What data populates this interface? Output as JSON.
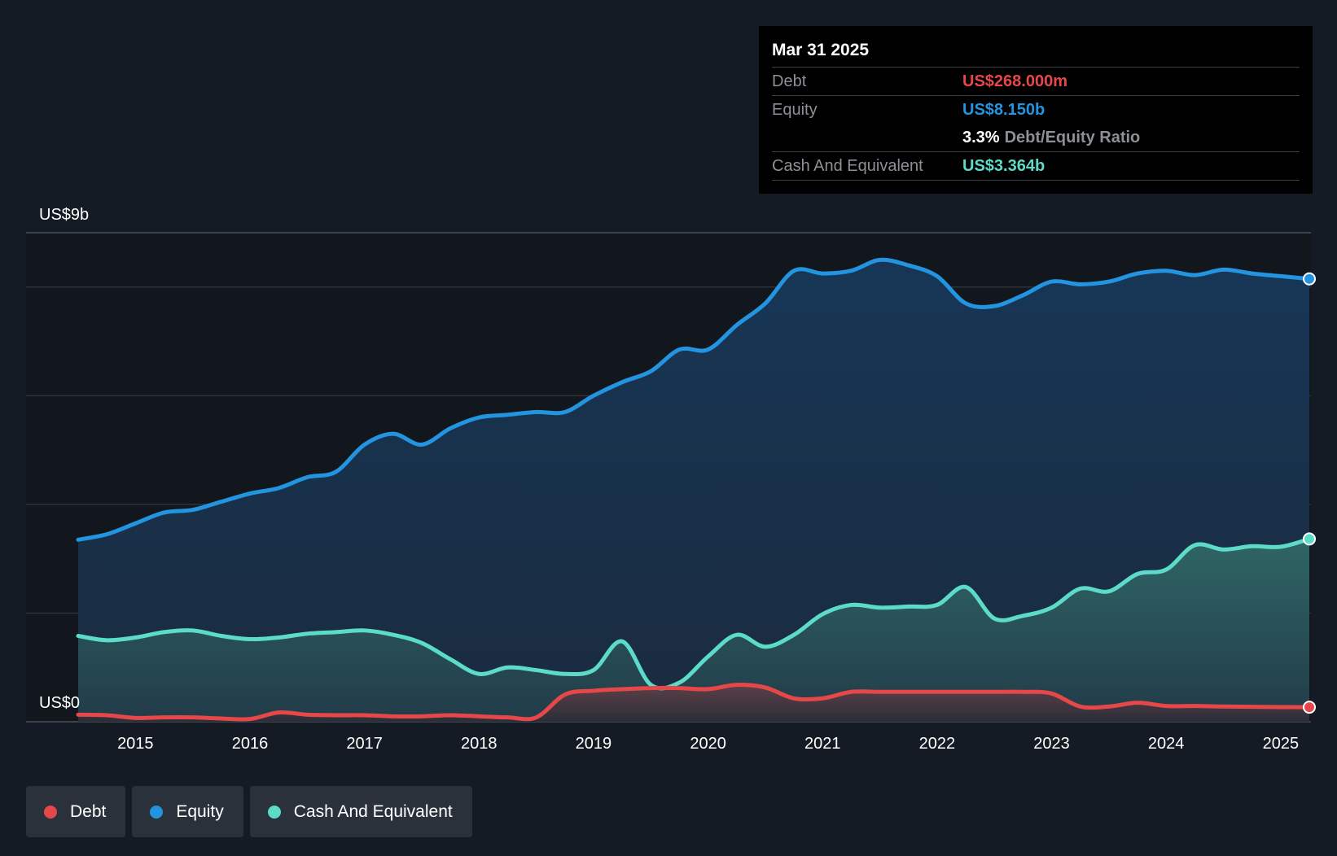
{
  "chart_data": {
    "type": "area",
    "title": "",
    "y_axis": {
      "top_label": "US$9b",
      "bottom_label": "US$0",
      "ylim": [
        0,
        9
      ],
      "unit": "US$ billions"
    },
    "x_axis": {
      "ticks": [
        "2015",
        "2016",
        "2017",
        "2018",
        "2019",
        "2020",
        "2021",
        "2022",
        "2023",
        "2024",
        "2025"
      ],
      "xlim": [
        2014.5,
        2025.25
      ]
    },
    "series": [
      {
        "name": "Equity",
        "color": "#2394df",
        "x": [
          2014.5,
          2014.75,
          2015.0,
          2015.25,
          2015.5,
          2015.75,
          2016.0,
          2016.25,
          2016.5,
          2016.75,
          2017.0,
          2017.25,
          2017.5,
          2017.75,
          2018.0,
          2018.25,
          2018.5,
          2018.75,
          2019.0,
          2019.25,
          2019.5,
          2019.75,
          2020.0,
          2020.25,
          2020.5,
          2020.75,
          2021.0,
          2021.25,
          2021.5,
          2021.75,
          2022.0,
          2022.25,
          2022.5,
          2022.75,
          2023.0,
          2023.25,
          2023.5,
          2023.75,
          2024.0,
          2024.25,
          2024.5,
          2024.75,
          2025.0,
          2025.25
        ],
        "values": [
          3.35,
          3.45,
          3.65,
          3.85,
          3.9,
          4.05,
          4.2,
          4.3,
          4.5,
          4.6,
          5.1,
          5.3,
          5.1,
          5.4,
          5.6,
          5.65,
          5.7,
          5.7,
          6.0,
          6.25,
          6.45,
          6.85,
          6.85,
          7.3,
          7.7,
          8.3,
          8.25,
          8.3,
          8.5,
          8.4,
          8.2,
          7.7,
          7.65,
          7.85,
          8.1,
          8.05,
          8.1,
          8.25,
          8.3,
          8.22,
          8.32,
          8.25,
          8.2,
          8.15
        ]
      },
      {
        "name": "Cash And Equivalent",
        "color": "#5cdbc9",
        "x": [
          2014.5,
          2014.75,
          2015.0,
          2015.25,
          2015.5,
          2015.75,
          2016.0,
          2016.25,
          2016.5,
          2016.75,
          2017.0,
          2017.25,
          2017.5,
          2017.75,
          2018.0,
          2018.25,
          2018.5,
          2018.75,
          2019.0,
          2019.25,
          2019.5,
          2019.75,
          2020.0,
          2020.25,
          2020.5,
          2020.75,
          2021.0,
          2021.25,
          2021.5,
          2021.75,
          2022.0,
          2022.25,
          2022.5,
          2022.75,
          2023.0,
          2023.25,
          2023.5,
          2023.75,
          2024.0,
          2024.25,
          2024.5,
          2024.75,
          2025.0,
          2025.25
        ],
        "values": [
          1.58,
          1.5,
          1.55,
          1.65,
          1.68,
          1.58,
          1.52,
          1.55,
          1.62,
          1.65,
          1.68,
          1.6,
          1.45,
          1.15,
          0.88,
          1.0,
          0.95,
          0.88,
          0.95,
          1.48,
          0.68,
          0.72,
          1.2,
          1.6,
          1.38,
          1.6,
          1.98,
          2.15,
          2.1,
          2.12,
          2.15,
          2.48,
          1.9,
          1.95,
          2.1,
          2.45,
          2.4,
          2.72,
          2.8,
          3.25,
          3.17,
          3.23,
          3.22,
          3.364
        ]
      },
      {
        "name": "Debt",
        "color": "#e64849",
        "x": [
          2014.5,
          2014.75,
          2015.0,
          2015.25,
          2015.5,
          2015.75,
          2016.0,
          2016.25,
          2016.5,
          2016.75,
          2017.0,
          2017.25,
          2017.5,
          2017.75,
          2018.0,
          2018.25,
          2018.5,
          2018.75,
          2019.0,
          2019.25,
          2019.5,
          2019.75,
          2020.0,
          2020.25,
          2020.5,
          2020.75,
          2021.0,
          2021.25,
          2021.5,
          2021.75,
          2022.0,
          2022.25,
          2022.5,
          2022.75,
          2023.0,
          2023.25,
          2023.5,
          2023.75,
          2024.0,
          2024.25,
          2024.5,
          2024.75,
          2025.0,
          2025.25
        ],
        "values": [
          0.13,
          0.12,
          0.07,
          0.08,
          0.08,
          0.06,
          0.05,
          0.17,
          0.13,
          0.12,
          0.12,
          0.1,
          0.1,
          0.12,
          0.1,
          0.08,
          0.08,
          0.5,
          0.57,
          0.6,
          0.62,
          0.62,
          0.6,
          0.68,
          0.63,
          0.43,
          0.43,
          0.55,
          0.55,
          0.55,
          0.55,
          0.55,
          0.55,
          0.55,
          0.52,
          0.28,
          0.28,
          0.35,
          0.29,
          0.29,
          0.28,
          0.275,
          0.27,
          0.268
        ]
      }
    ],
    "legend": [
      "Debt",
      "Equity",
      "Cash And Equivalent"
    ],
    "legend_position": "bottom-left",
    "grid": true
  },
  "tooltip": {
    "date": "Mar 31 2025",
    "debt_label": "Debt",
    "debt_value": "US$268.000m",
    "equity_label": "Equity",
    "equity_value": "US$8.150b",
    "ratio_value": "3.3%",
    "ratio_label": "Debt/Equity Ratio",
    "cash_label": "Cash And Equivalent",
    "cash_value": "US$3.364b"
  },
  "legend": {
    "items": [
      {
        "label": "Debt",
        "color": "#e64849"
      },
      {
        "label": "Equity",
        "color": "#2394df"
      },
      {
        "label": "Cash And Equivalent",
        "color": "#5cdbc9"
      }
    ]
  },
  "colors": {
    "background": "#151b24",
    "plot_background": "#12161d",
    "grid": "#2c333d"
  }
}
